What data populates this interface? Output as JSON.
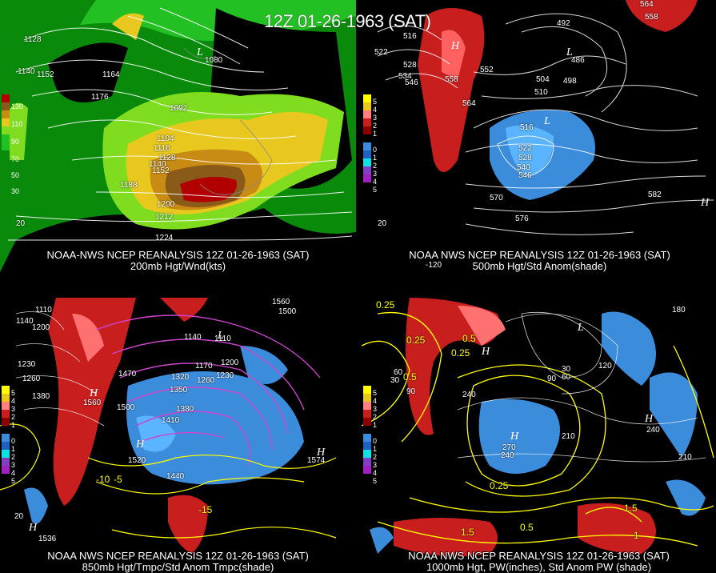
{
  "title": "12Z 01-26-1963 (SAT)",
  "panels": [
    {
      "caption1": "NOAA-NWS NCEP REANALYSIS 12Z 01-26-1963 (SAT)",
      "caption2": "200mb Hgt/Wnd(kts)",
      "legend": [
        "130",
        "110",
        "90",
        "70",
        "50",
        "30"
      ],
      "contour_labels": [
        "1128",
        "1140",
        "1152",
        "1164",
        "1176",
        "1092",
        "1104",
        "1116",
        "1128",
        "1140",
        "1152",
        "1188",
        "1200",
        "1212",
        "1224",
        "1080",
        "20"
      ]
    },
    {
      "caption1": "NOAA NWS NCEP REANALYSIS 12Z 01-26-1963 (SAT)",
      "caption2": "500mb Hgt/Std Anom(shade)",
      "legend": [
        "5",
        "4",
        "3",
        "2",
        "1",
        "0",
        "1",
        "2",
        "3",
        "4",
        "5"
      ],
      "contour_labels": [
        "516",
        "522",
        "528",
        "534",
        "546",
        "564",
        "558",
        "552",
        "492",
        "486",
        "504",
        "498",
        "510",
        "516",
        "522",
        "528",
        "540",
        "546",
        "570",
        "576",
        "582",
        "564",
        "558",
        "20",
        "-120"
      ]
    },
    {
      "caption1": "NOAA NWS NCEP REANALYSIS 12Z 01-26-1963 (SAT)",
      "caption2": "850mb Hgt/Tmpc/Std Anom Tmpc(shade)",
      "legend": [
        "5",
        "4",
        "3",
        "2",
        "1",
        "0",
        "1",
        "2",
        "3",
        "4",
        "5"
      ],
      "contour_labels": [
        "1110",
        "1140",
        "1200",
        "1230",
        "1260",
        "1380",
        "1470",
        "1500",
        "1410",
        "1380",
        "1440",
        "1350",
        "1320",
        "1170",
        "1260",
        "1230",
        "1200",
        "1140",
        "1110",
        "1560",
        "1500",
        "1536",
        "1560",
        "1520",
        "-10",
        "-5",
        "-15",
        "20",
        "1574"
      ]
    },
    {
      "caption1": "NOAA NWS NCEP REANALYSIS 12Z 01-26-1963 (SAT)",
      "caption2": "1000mb Hgt, PW(inches), Std Anom PW (shade)",
      "legend": [
        "5",
        "4",
        "3",
        "2",
        "1",
        "0",
        "1",
        "2",
        "3",
        "4",
        "5"
      ],
      "contour_labels": [
        "0.25",
        "0.25",
        "0.5",
        "0.25",
        "0.5",
        "0.25",
        "1.5",
        "1.5",
        "1",
        "0.5",
        "30",
        "90",
        "60",
        "120",
        "240",
        "270",
        "210",
        "240",
        "240",
        "210",
        "180",
        "30",
        "60",
        "90"
      ]
    }
  ],
  "colors": {
    "wind_dark_green": "#0a8a0a",
    "wind_green": "#22c022",
    "wind_light_green": "#7fdc1e",
    "wind_yellow": "#e8c81e",
    "wind_orange": "#c88c14",
    "wind_brown": "#8a5a18",
    "wind_red": "#b00000",
    "anom_pos": "#c81e1e",
    "anom_neg": "#3c8cdc",
    "temp_contour": "#cc44cc",
    "pw_contour": "#ffff00",
    "hgt_contour": "#ffffff"
  }
}
